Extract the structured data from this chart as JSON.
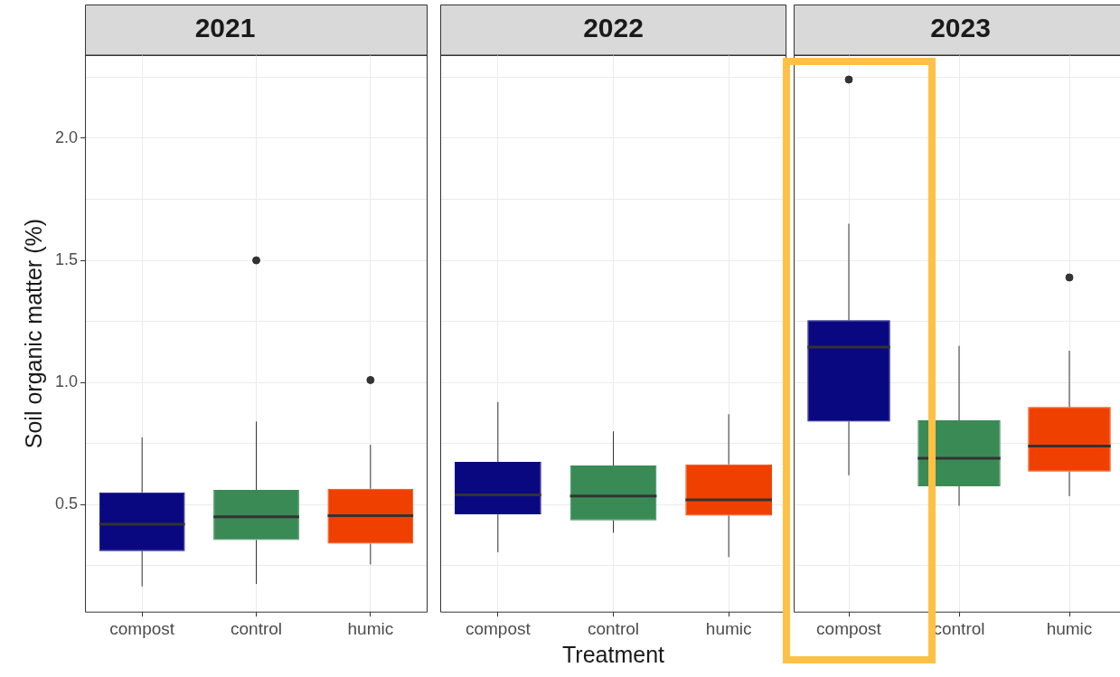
{
  "chart_data": [
    {
      "type": "box",
      "title": "2021",
      "ylabel": "Soil organic matter (%)",
      "categories": [
        "compost",
        "control",
        "humic"
      ],
      "colors": [
        "#0a0880",
        "#3a8a56",
        "#f04000"
      ],
      "boxes": [
        {
          "low": 0.165,
          "q1": 0.31,
          "median": 0.42,
          "q3": 0.55,
          "high": 0.775
        },
        {
          "low": 0.175,
          "q1": 0.355,
          "median": 0.45,
          "q3": 0.56,
          "high": 0.84,
          "outliers": [
            1.5
          ]
        },
        {
          "low": 0.255,
          "q1": 0.34,
          "median": 0.455,
          "q3": 0.565,
          "high": 0.745,
          "outliers": [
            1.01
          ]
        }
      ],
      "ylim": [
        0.06,
        2.34
      ],
      "yticks": [
        {
          "value": 0.25,
          "label": null
        },
        {
          "value": 0.5,
          "label": "0.5"
        },
        {
          "value": 0.75,
          "label": null
        },
        {
          "value": 1,
          "label": "1.0"
        },
        {
          "value": 1.25,
          "label": null
        },
        {
          "value": 1.5,
          "label": "1.5"
        },
        {
          "value": 1.75,
          "label": null
        },
        {
          "value": 2,
          "label": "2.0"
        },
        {
          "value": 2.25,
          "label": null
        }
      ],
      "grid": true
    },
    {
      "type": "box",
      "title": "2022",
      "xlabel": "Treatment",
      "categories": [
        "compost",
        "control",
        "humic"
      ],
      "colors": [
        "#0a0880",
        "#3a8a56",
        "#f04000"
      ],
      "boxes": [
        {
          "low": 0.305,
          "q1": 0.46,
          "median": 0.54,
          "q3": 0.675,
          "high": 0.92
        },
        {
          "low": 0.385,
          "q1": 0.435,
          "median": 0.535,
          "q3": 0.66,
          "high": 0.8
        },
        {
          "low": 0.285,
          "q1": 0.455,
          "median": 0.52,
          "q3": 0.665,
          "high": 0.87
        }
      ],
      "ylim": [
        0.06,
        2.34
      ],
      "yticks": [
        0.25,
        0.5,
        0.75,
        1,
        1.25,
        1.5,
        1.75,
        2,
        2.25
      ],
      "grid": true,
      "tick_labels": "x"
    },
    {
      "type": "box",
      "title": "2023",
      "categories": [
        "compost",
        "control",
        "humic"
      ],
      "colors": [
        "#0a0880",
        "#3a8a56",
        "#f04000"
      ],
      "boxes": [
        {
          "low": 0.62,
          "q1": 0.84,
          "median": 1.145,
          "q3": 1.255,
          "high": 1.65,
          "outliers": [
            2.24
          ]
        },
        {
          "low": 0.495,
          "q1": 0.575,
          "median": 0.69,
          "q3": 0.845,
          "high": 1.15
        },
        {
          "low": 0.535,
          "q1": 0.635,
          "median": 0.74,
          "q3": 0.9,
          "high": 1.13,
          "outliers": [
            1.43
          ]
        }
      ],
      "ylim": [
        0.06,
        2.34
      ],
      "yticks": [
        0.25,
        0.5,
        0.75,
        1,
        1.25,
        1.5,
        1.75,
        2,
        2.25
      ],
      "grid": true,
      "tick_labels": "x"
    }
  ]
}
